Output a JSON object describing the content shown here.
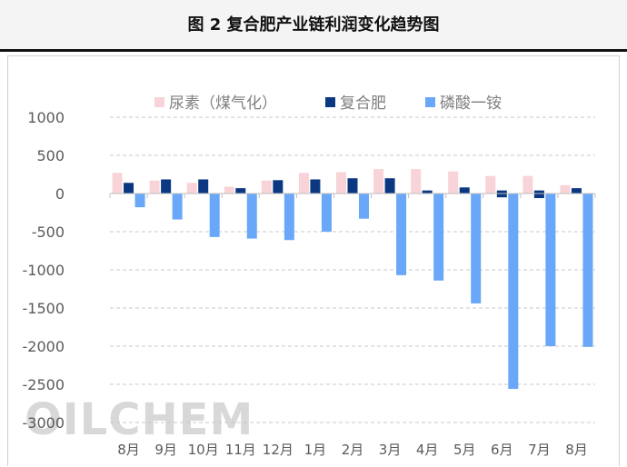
{
  "figure": {
    "title": "图 2     复合肥产业链利润变化趋势图"
  },
  "watermark": "OILCHEM",
  "chart_data": {
    "type": "bar",
    "categories": [
      "8月",
      "9月",
      "10月",
      "11月",
      "12月",
      "1月",
      "2月",
      "3月",
      "4月",
      "5月",
      "6月",
      "7月",
      "8月"
    ],
    "series": [
      {
        "name": "尿素（煤气化）",
        "color": "#f8d3d8",
        "values": [
          270,
          170,
          140,
          90,
          170,
          270,
          280,
          320,
          320,
          290,
          230,
          230,
          110
        ]
      },
      {
        "name": "复合肥",
        "color": "#0b3880",
        "values": [
          140,
          185,
          185,
          70,
          175,
          185,
          200,
          200,
          40,
          80,
          [
            40,
            -50
          ],
          [
            40,
            -60
          ],
          70
        ]
      },
      {
        "name": "磷酸一铵",
        "color": "#6aa7f8",
        "values": [
          -180,
          -340,
          -570,
          -590,
          -610,
          -500,
          -330,
          -1070,
          -1140,
          -1440,
          -2560,
          -2000,
          -2010
        ]
      }
    ],
    "y_ticks": [
      1000,
      500,
      0,
      -500,
      -1000,
      -1500,
      -2000,
      -2500,
      -3000
    ],
    "ylim": [
      -3000,
      1000
    ],
    "grid": true,
    "legend_position": "top",
    "xlabel": "",
    "ylabel": ""
  }
}
